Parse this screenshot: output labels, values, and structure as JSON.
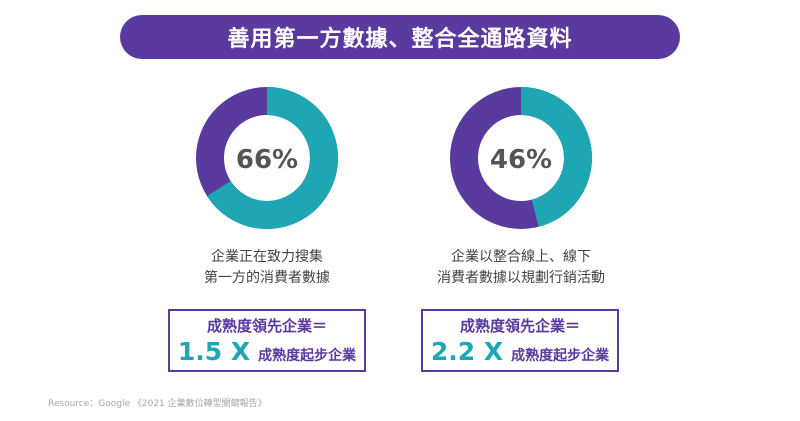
{
  "title": "善用第一方數據、整合全通路資料",
  "chart_data": [
    {
      "type": "pie",
      "label": "66%",
      "value": 66,
      "caption": [
        "企業正在致力搜集",
        "第一方的消費者數據"
      ]
    },
    {
      "type": "pie",
      "label": "46%",
      "value": 46,
      "caption": [
        "企業以整合線上、線下",
        "消費者數據以規劃行銷活動"
      ]
    }
  ],
  "stats": [
    {
      "top": "成熟度領先企業＝",
      "multiplier": "1.5 X",
      "suffix": "成熟度起步企業"
    },
    {
      "top": "成熟度領先企業＝",
      "multiplier": "2.2 X",
      "suffix": "成熟度起步企業"
    }
  ],
  "colors": {
    "primary": "#5b3a9f",
    "accent": "#1ea7b3"
  },
  "source": "Resource：Google 《2021 企業數位轉型關鍵報告》"
}
